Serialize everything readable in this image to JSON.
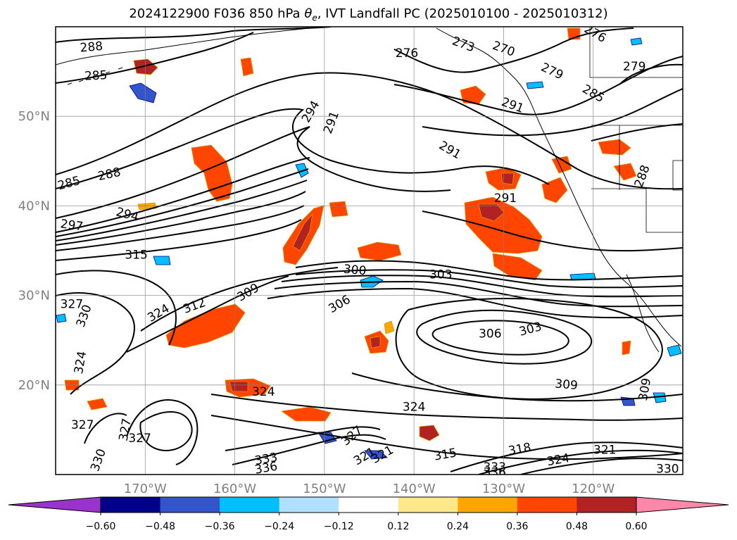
{
  "title": {
    "prefix": "2024122900 F036 850 hPa ",
    "symbol": "θ",
    "subscript": "e",
    "suffix": ", IVT Landfall PC (2025010100 - 2025010312)"
  },
  "map": {
    "lat_range": [
      10,
      60
    ],
    "lon_range": [
      -180,
      -110
    ],
    "lat_ticks": [
      {
        "lat": 50,
        "label": "50°N"
      },
      {
        "lat": 40,
        "label": "40°N"
      },
      {
        "lat": 30,
        "label": "30°N"
      },
      {
        "lat": 20,
        "label": "20°N"
      }
    ],
    "lon_ticks": [
      {
        "lon": -170,
        "label": "170°W"
      },
      {
        "lon": -160,
        "label": "160°W"
      },
      {
        "lon": -150,
        "label": "150°W"
      },
      {
        "lon": -140,
        "label": "140°W"
      },
      {
        "lon": -130,
        "label": "130°W"
      },
      {
        "lon": -120,
        "label": "120°W"
      }
    ],
    "contour_labels": [
      {
        "lon": -176,
        "lat": 57.7,
        "text": "288",
        "rot": -5
      },
      {
        "lon": -175.5,
        "lat": 54.5,
        "text": "285",
        "rot": -3
      },
      {
        "lon": -178.5,
        "lat": 42.5,
        "text": "285",
        "rot": -15
      },
      {
        "lon": -174,
        "lat": 43.5,
        "text": "288",
        "rot": -12
      },
      {
        "lon": -178.2,
        "lat": 37.8,
        "text": "297",
        "rot": 8
      },
      {
        "lon": -172,
        "lat": 39,
        "text": "294",
        "rot": 15
      },
      {
        "lon": -171,
        "lat": 34.5,
        "text": "315",
        "rot": 0
      },
      {
        "lon": -151.5,
        "lat": 50.5,
        "text": "294",
        "rot": -60
      },
      {
        "lon": -149.2,
        "lat": 49.3,
        "text": "291",
        "rot": -70
      },
      {
        "lon": -140.8,
        "lat": 57,
        "text": "276",
        "rot": 0
      },
      {
        "lon": -134.5,
        "lat": 58,
        "text": "273",
        "rot": 20
      },
      {
        "lon": -130,
        "lat": 57.5,
        "text": "270",
        "rot": 20
      },
      {
        "lon": -119.8,
        "lat": 59.2,
        "text": "276",
        "rot": 30
      },
      {
        "lon": -124.6,
        "lat": 55,
        "text": "279",
        "rot": 25
      },
      {
        "lon": -115.4,
        "lat": 55.5,
        "text": "279",
        "rot": 0
      },
      {
        "lon": -120,
        "lat": 52.5,
        "text": "285",
        "rot": 30
      },
      {
        "lon": -129,
        "lat": 51.2,
        "text": "291",
        "rot": 20
      },
      {
        "lon": -136,
        "lat": 46.2,
        "text": "291",
        "rot": 30
      },
      {
        "lon": -129.8,
        "lat": 40.8,
        "text": "291",
        "rot": 0
      },
      {
        "lon": -114.5,
        "lat": 43.3,
        "text": "288",
        "rot": -70
      },
      {
        "lon": -146.6,
        "lat": 32.8,
        "text": "300",
        "rot": 5
      },
      {
        "lon": -137,
        "lat": 32.3,
        "text": "303",
        "rot": 0
      },
      {
        "lon": -148.3,
        "lat": 29,
        "text": "306",
        "rot": -30
      },
      {
        "lon": -158.5,
        "lat": 30.3,
        "text": "309",
        "rot": -30
      },
      {
        "lon": -164.5,
        "lat": 28.8,
        "text": "312",
        "rot": -20
      },
      {
        "lon": -168.5,
        "lat": 28,
        "text": "324",
        "rot": -30
      },
      {
        "lon": -178.2,
        "lat": 29,
        "text": "327",
        "rot": 0
      },
      {
        "lon": -176.8,
        "lat": 27.7,
        "text": "330",
        "rot": -70
      },
      {
        "lon": -177.2,
        "lat": 22.5,
        "text": "324",
        "rot": -80
      },
      {
        "lon": -177,
        "lat": 15.5,
        "text": "327",
        "rot": 0
      },
      {
        "lon": -172.2,
        "lat": 15,
        "text": "327",
        "rot": -80
      },
      {
        "lon": -170.6,
        "lat": 14,
        "text": "327",
        "rot": 0
      },
      {
        "lon": -175.2,
        "lat": 11.6,
        "text": "330",
        "rot": -70
      },
      {
        "lon": -156.8,
        "lat": 19.2,
        "text": "324",
        "rot": 0
      },
      {
        "lon": -140,
        "lat": 17.5,
        "text": "324",
        "rot": 0
      },
      {
        "lon": -146.9,
        "lat": 14.3,
        "text": "327",
        "rot": -40
      },
      {
        "lon": -145.5,
        "lat": 12,
        "text": "321",
        "rot": -30
      },
      {
        "lon": -143.5,
        "lat": 12.2,
        "text": "321",
        "rot": -30
      },
      {
        "lon": -136.5,
        "lat": 12.2,
        "text": "315",
        "rot": -10
      },
      {
        "lon": -128.2,
        "lat": 12.8,
        "text": "318",
        "rot": -10
      },
      {
        "lon": -123.9,
        "lat": 11.6,
        "text": "324",
        "rot": -10
      },
      {
        "lon": -118.7,
        "lat": 12.7,
        "text": "321",
        "rot": 0
      },
      {
        "lon": -111.7,
        "lat": 10.6,
        "text": "330",
        "rot": 0
      },
      {
        "lon": -156.5,
        "lat": 11.7,
        "text": "333",
        "rot": -10
      },
      {
        "lon": -156.5,
        "lat": 10.7,
        "text": "336",
        "rot": -10
      },
      {
        "lon": -131,
        "lat": 10.8,
        "text": "333",
        "rot": 0
      },
      {
        "lon": -131,
        "lat": 10.2,
        "text": "336",
        "rot": 0
      },
      {
        "lon": -131.5,
        "lat": 25.7,
        "text": "306",
        "rot": 0
      },
      {
        "lon": -127,
        "lat": 26.2,
        "text": "303",
        "rot": -15
      },
      {
        "lon": -123,
        "lat": 20,
        "text": "309",
        "rot": 5
      },
      {
        "lon": -114.2,
        "lat": 19.5,
        "text": "309",
        "rot": -80
      }
    ]
  },
  "colorbar": {
    "ticks": [
      "−0.60",
      "−0.48",
      "−0.36",
      "−0.24",
      "−0.12",
      "0.12",
      "0.24",
      "0.36",
      "0.48",
      "0.60"
    ],
    "under_color": "#9933cc",
    "over_color": "#ff88aa",
    "colors": [
      "#00008b",
      "#3355cc",
      "#00bfff",
      "#b0e0ff",
      "#ffffff",
      "#ffe88a",
      "#ffa500",
      "#ff4500",
      "#b22222"
    ]
  }
}
